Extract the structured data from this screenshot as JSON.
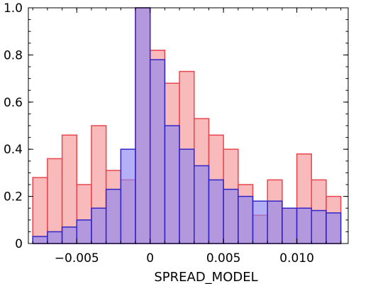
{
  "chart_data": {
    "type": "bar",
    "xlabel": "SPREAD_MODEL",
    "ylabel": "",
    "xlim": [
      -0.0083,
      0.0135
    ],
    "ylim": [
      0,
      1.0
    ],
    "bin_edges": [
      -0.008,
      -0.007,
      -0.006,
      -0.005,
      -0.004,
      -0.003,
      -0.002,
      -0.001,
      0.0,
      0.001,
      0.002,
      0.003,
      0.004,
      0.005,
      0.006,
      0.007,
      0.008,
      0.009,
      0.01,
      0.011,
      0.012,
      0.013
    ],
    "x_ticks": [
      {
        "value": -0.005,
        "label": "−0.005"
      },
      {
        "value": 0,
        "label": "0"
      },
      {
        "value": 0.005,
        "label": "0.005"
      },
      {
        "value": 0.01,
        "label": "0.010"
      }
    ],
    "y_ticks": [
      {
        "value": 0.0,
        "label": "0"
      },
      {
        "value": 0.2,
        "label": "0.2"
      },
      {
        "value": 0.4,
        "label": "0.4"
      },
      {
        "value": 0.6,
        "label": "0.6"
      },
      {
        "value": 0.8,
        "label": "0.8"
      },
      {
        "value": 1.0,
        "label": "1.0"
      }
    ],
    "grid": false,
    "series": [
      {
        "color": "#e8474d",
        "fill": "#f7a3a6",
        "values": [
          0.28,
          0.36,
          0.46,
          0.25,
          0.5,
          0.31,
          0.27,
          1.0,
          0.82,
          0.68,
          0.73,
          0.53,
          0.46,
          0.4,
          0.25,
          0.12,
          0.27,
          0.15,
          0.38,
          0.27,
          0.2
        ]
      },
      {
        "color": "#3326c8",
        "fill": "#8e86f0",
        "values": [
          0.03,
          0.05,
          0.07,
          0.1,
          0.15,
          0.23,
          0.4,
          1.0,
          0.78,
          0.5,
          0.4,
          0.33,
          0.27,
          0.23,
          0.2,
          0.18,
          0.18,
          0.15,
          0.15,
          0.14,
          0.13
        ]
      }
    ]
  }
}
